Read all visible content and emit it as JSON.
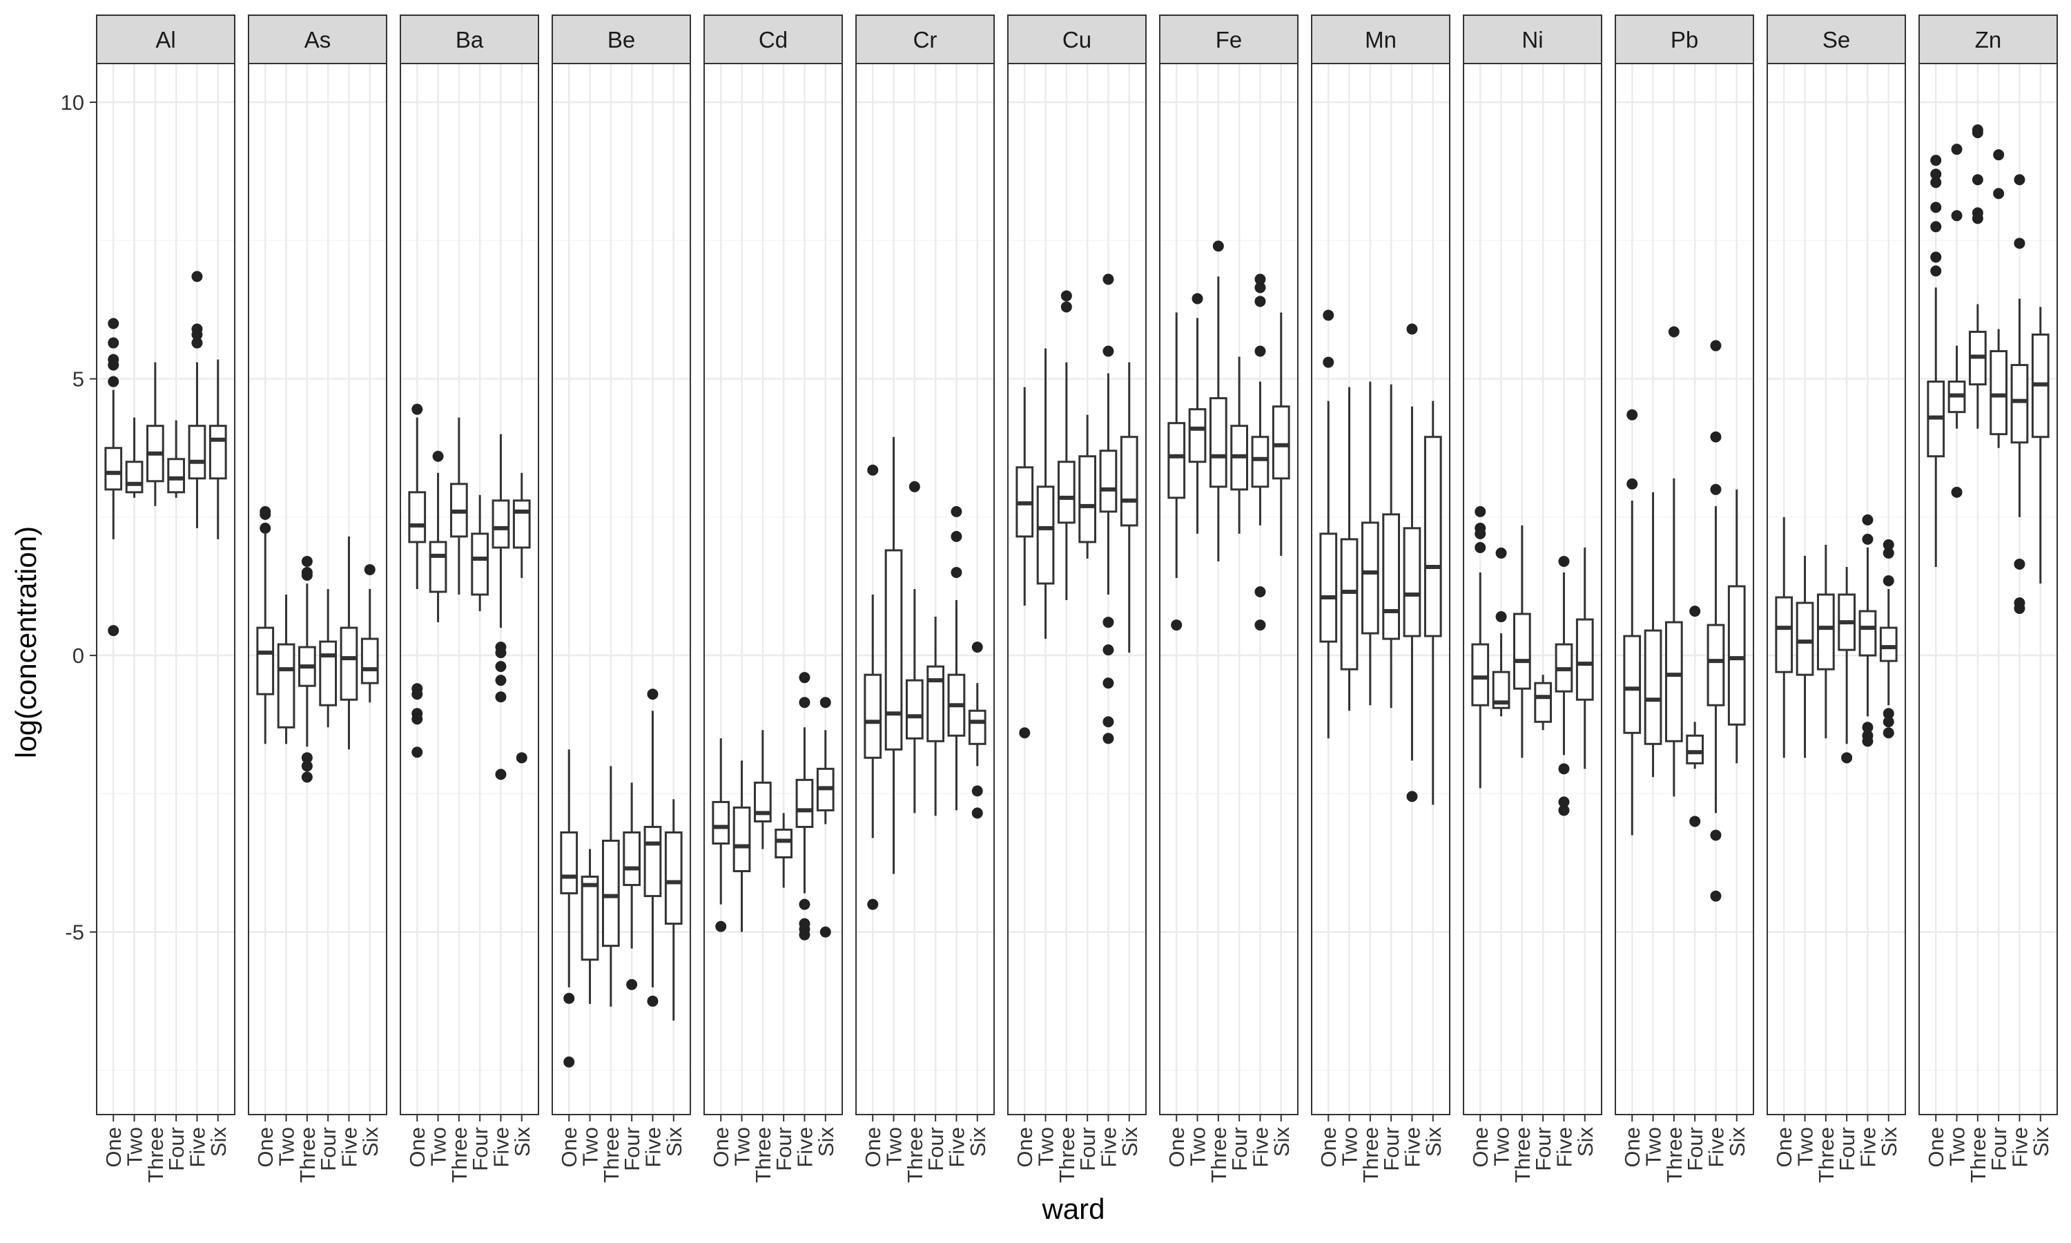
{
  "chart_data": {
    "type": "boxplot",
    "title": "",
    "xlabel": "ward",
    "ylabel": "log(concentration)",
    "ylim": [
      -8.3,
      10.7
    ],
    "yticks": [
      -5,
      0,
      5,
      10
    ],
    "ytick_labels": [
      "-5",
      "0",
      "5",
      "10"
    ],
    "grid": true,
    "facet_by": "element",
    "categories": [
      "One",
      "Two",
      "Three",
      "Four",
      "Five",
      "Six"
    ],
    "colors": {
      "panel_border": "#333333",
      "strip_fill": "#d9d9d9",
      "grid_major": "#ebebeb",
      "grid_minor": "#f5f5f5",
      "box": "#333333",
      "outlier": "#222222"
    },
    "panels": [
      {
        "label": "Al",
        "boxes": [
          {
            "q1": 3.0,
            "median": 3.3,
            "q3": 3.75,
            "lo": 2.1,
            "hi": 4.8,
            "outliers": [
              0.45,
              4.95,
              5.25,
              5.35,
              5.65,
              6.0
            ]
          },
          {
            "q1": 2.95,
            "median": 3.1,
            "q3": 3.5,
            "lo": 2.85,
            "hi": 4.3,
            "outliers": []
          },
          {
            "q1": 3.15,
            "median": 3.65,
            "q3": 4.15,
            "lo": 2.7,
            "hi": 5.3,
            "outliers": []
          },
          {
            "q1": 2.95,
            "median": 3.2,
            "q3": 3.55,
            "lo": 2.85,
            "hi": 4.25,
            "outliers": []
          },
          {
            "q1": 3.2,
            "median": 3.5,
            "q3": 4.15,
            "lo": 2.3,
            "hi": 5.3,
            "outliers": [
              5.65,
              5.8,
              5.9,
              6.85
            ]
          },
          {
            "q1": 3.2,
            "median": 3.9,
            "q3": 4.15,
            "lo": 2.1,
            "hi": 5.35,
            "outliers": []
          }
        ]
      },
      {
        "label": "As",
        "boxes": [
          {
            "q1": -0.7,
            "median": 0.05,
            "q3": 0.5,
            "lo": -1.6,
            "hi": 2.2,
            "outliers": [
              2.3,
              2.55,
              2.6
            ]
          },
          {
            "q1": -1.3,
            "median": -0.25,
            "q3": 0.2,
            "lo": -1.6,
            "hi": 1.1,
            "outliers": []
          },
          {
            "q1": -0.55,
            "median": -0.2,
            "q3": 0.15,
            "lo": -1.65,
            "hi": 1.3,
            "outliers": [
              -2.2,
              -2.0,
              -1.85,
              1.45,
              1.5,
              1.7
            ]
          },
          {
            "q1": -0.9,
            "median": 0.0,
            "q3": 0.25,
            "lo": -1.3,
            "hi": 1.2,
            "outliers": []
          },
          {
            "q1": -0.8,
            "median": -0.05,
            "q3": 0.5,
            "lo": -1.7,
            "hi": 2.15,
            "outliers": []
          },
          {
            "q1": -0.5,
            "median": -0.25,
            "q3": 0.3,
            "lo": -0.85,
            "hi": 1.2,
            "outliers": [
              1.55
            ]
          }
        ]
      },
      {
        "label": "Ba",
        "boxes": [
          {
            "q1": 2.05,
            "median": 2.35,
            "q3": 2.95,
            "lo": 1.2,
            "hi": 4.3,
            "outliers": [
              -1.75,
              -1.15,
              -1.05,
              -0.7,
              -0.6,
              4.45
            ]
          },
          {
            "q1": 1.15,
            "median": 1.8,
            "q3": 2.05,
            "lo": 0.6,
            "hi": 3.3,
            "outliers": [
              3.6
            ]
          },
          {
            "q1": 2.15,
            "median": 2.6,
            "q3": 3.1,
            "lo": 1.1,
            "hi": 4.3,
            "outliers": []
          },
          {
            "q1": 1.1,
            "median": 1.75,
            "q3": 2.2,
            "lo": 0.8,
            "hi": 2.9,
            "outliers": []
          },
          {
            "q1": 1.95,
            "median": 2.3,
            "q3": 2.8,
            "lo": 0.5,
            "hi": 4.0,
            "outliers": [
              -2.15,
              -0.75,
              -0.45,
              -0.2,
              0.05,
              0.15
            ]
          },
          {
            "q1": 1.95,
            "median": 2.6,
            "q3": 2.8,
            "lo": 1.4,
            "hi": 3.3,
            "outliers": [
              -1.85
            ]
          }
        ]
      },
      {
        "label": "Be",
        "boxes": [
          {
            "q1": -4.3,
            "median": -4.0,
            "q3": -3.2,
            "lo": -6.0,
            "hi": -1.7,
            "outliers": [
              -7.35,
              -6.2
            ]
          },
          {
            "q1": -5.5,
            "median": -4.15,
            "q3": -4.0,
            "lo": -6.3,
            "hi": -3.5,
            "outliers": []
          },
          {
            "q1": -5.25,
            "median": -4.35,
            "q3": -3.35,
            "lo": -6.35,
            "hi": -2.0,
            "outliers": []
          },
          {
            "q1": -4.15,
            "median": -3.85,
            "q3": -3.2,
            "lo": -5.3,
            "hi": -2.3,
            "outliers": [
              -5.95
            ]
          },
          {
            "q1": -4.35,
            "median": -3.4,
            "q3": -3.1,
            "lo": -6.0,
            "hi": -1.0,
            "outliers": [
              -6.25,
              -0.7
            ]
          },
          {
            "q1": -4.85,
            "median": -4.1,
            "q3": -3.2,
            "lo": -6.6,
            "hi": -2.6,
            "outliers": []
          }
        ]
      },
      {
        "label": "Cd",
        "boxes": [
          {
            "q1": -3.4,
            "median": -3.1,
            "q3": -2.65,
            "lo": -4.5,
            "hi": -1.5,
            "outliers": [
              -4.9
            ]
          },
          {
            "q1": -3.9,
            "median": -3.45,
            "q3": -2.75,
            "lo": -5.0,
            "hi": -1.9,
            "outliers": []
          },
          {
            "q1": -3.0,
            "median": -2.85,
            "q3": -2.3,
            "lo": -3.5,
            "hi": -1.35,
            "outliers": []
          },
          {
            "q1": -3.65,
            "median": -3.35,
            "q3": -3.15,
            "lo": -4.2,
            "hi": -2.85,
            "outliers": []
          },
          {
            "q1": -3.1,
            "median": -2.8,
            "q3": -2.25,
            "lo": -4.3,
            "hi": -1.3,
            "outliers": [
              -5.05,
              -4.95,
              -4.85,
              -4.5,
              -0.85,
              -0.4
            ]
          },
          {
            "q1": -2.8,
            "median": -2.4,
            "q3": -2.05,
            "lo": -3.05,
            "hi": -1.35,
            "outliers": [
              -5.0,
              -0.85
            ]
          }
        ]
      },
      {
        "label": "Cr",
        "boxes": [
          {
            "q1": -1.85,
            "median": -1.2,
            "q3": -0.35,
            "lo": -3.3,
            "hi": 1.1,
            "outliers": [
              -4.5,
              3.35
            ]
          },
          {
            "q1": -1.7,
            "median": -1.05,
            "q3": 1.9,
            "lo": -3.95,
            "hi": 3.95,
            "outliers": []
          },
          {
            "q1": -1.5,
            "median": -1.1,
            "q3": -0.45,
            "lo": -2.85,
            "hi": 1.2,
            "outliers": [
              3.05
            ]
          },
          {
            "q1": -1.55,
            "median": -0.45,
            "q3": -0.2,
            "lo": -2.9,
            "hi": 0.7,
            "outliers": []
          },
          {
            "q1": -1.45,
            "median": -0.9,
            "q3": -0.35,
            "lo": -2.8,
            "hi": 1.0,
            "outliers": [
              1.5,
              2.15,
              2.6
            ]
          },
          {
            "q1": -1.6,
            "median": -1.2,
            "q3": -1.0,
            "lo": -2.0,
            "hi": -0.5,
            "outliers": [
              -2.85,
              -2.45,
              0.15
            ]
          }
        ]
      },
      {
        "label": "Cu",
        "boxes": [
          {
            "q1": 2.15,
            "median": 2.75,
            "q3": 3.4,
            "lo": 0.9,
            "hi": 4.85,
            "outliers": [
              -1.4
            ]
          },
          {
            "q1": 1.3,
            "median": 2.3,
            "q3": 3.05,
            "lo": 0.3,
            "hi": 5.55,
            "outliers": []
          },
          {
            "q1": 2.4,
            "median": 2.85,
            "q3": 3.5,
            "lo": 1.0,
            "hi": 5.3,
            "outliers": [
              6.3,
              6.5
            ]
          },
          {
            "q1": 2.05,
            "median": 2.7,
            "q3": 3.6,
            "lo": 1.75,
            "hi": 4.35,
            "outliers": []
          },
          {
            "q1": 2.6,
            "median": 3.0,
            "q3": 3.7,
            "lo": 1.1,
            "hi": 5.1,
            "outliers": [
              -1.5,
              -1.2,
              -0.5,
              0.1,
              0.6,
              5.5,
              6.8
            ]
          },
          {
            "q1": 2.35,
            "median": 2.8,
            "q3": 3.95,
            "lo": 0.05,
            "hi": 5.3,
            "outliers": []
          }
        ]
      },
      {
        "label": "Fe",
        "boxes": [
          {
            "q1": 2.85,
            "median": 3.6,
            "q3": 4.2,
            "lo": 1.4,
            "hi": 6.2,
            "outliers": [
              0.55
            ]
          },
          {
            "q1": 3.5,
            "median": 4.1,
            "q3": 4.45,
            "lo": 2.2,
            "hi": 6.1,
            "outliers": [
              6.45
            ]
          },
          {
            "q1": 3.05,
            "median": 3.6,
            "q3": 4.65,
            "lo": 1.7,
            "hi": 6.85,
            "outliers": [
              7.4
            ]
          },
          {
            "q1": 3.0,
            "median": 3.6,
            "q3": 4.15,
            "lo": 2.2,
            "hi": 5.4,
            "outliers": []
          },
          {
            "q1": 3.05,
            "median": 3.55,
            "q3": 3.95,
            "lo": 2.35,
            "hi": 4.95,
            "outliers": [
              0.55,
              1.15,
              5.5,
              6.4,
              6.65,
              6.8
            ]
          },
          {
            "q1": 3.2,
            "median": 3.8,
            "q3": 4.5,
            "lo": 1.8,
            "hi": 6.2,
            "outliers": []
          }
        ]
      },
      {
        "label": "Mn",
        "boxes": [
          {
            "q1": 0.25,
            "median": 1.05,
            "q3": 2.2,
            "lo": -1.5,
            "hi": 4.6,
            "outliers": [
              5.3,
              6.15
            ]
          },
          {
            "q1": -0.25,
            "median": 1.15,
            "q3": 2.1,
            "lo": -1.0,
            "hi": 4.85,
            "outliers": []
          },
          {
            "q1": 0.4,
            "median": 1.5,
            "q3": 2.4,
            "lo": -0.9,
            "hi": 4.95,
            "outliers": []
          },
          {
            "q1": 0.3,
            "median": 0.8,
            "q3": 2.55,
            "lo": -0.95,
            "hi": 4.9,
            "outliers": []
          },
          {
            "q1": 0.35,
            "median": 1.1,
            "q3": 2.3,
            "lo": -1.9,
            "hi": 4.5,
            "outliers": [
              -2.55,
              5.9
            ]
          },
          {
            "q1": 0.35,
            "median": 1.6,
            "q3": 3.95,
            "lo": -2.7,
            "hi": 4.6,
            "outliers": []
          }
        ]
      },
      {
        "label": "Ni",
        "boxes": [
          {
            "q1": -0.9,
            "median": -0.4,
            "q3": 0.2,
            "lo": -2.4,
            "hi": 1.5,
            "outliers": [
              1.95,
              2.2,
              2.3,
              2.6
            ]
          },
          {
            "q1": -0.95,
            "median": -0.85,
            "q3": -0.3,
            "lo": -1.1,
            "hi": 0.4,
            "outliers": [
              0.7,
              1.85
            ]
          },
          {
            "q1": -0.6,
            "median": -0.1,
            "q3": 0.75,
            "lo": -1.85,
            "hi": 2.35,
            "outliers": []
          },
          {
            "q1": -1.2,
            "median": -0.75,
            "q3": -0.5,
            "lo": -1.35,
            "hi": -0.35,
            "outliers": []
          },
          {
            "q1": -0.65,
            "median": -0.25,
            "q3": 0.2,
            "lo": -1.8,
            "hi": 1.5,
            "outliers": [
              -2.8,
              -2.65,
              -2.05,
              1.7
            ]
          },
          {
            "q1": -0.8,
            "median": -0.15,
            "q3": 0.65,
            "lo": -2.05,
            "hi": 1.95,
            "outliers": []
          }
        ]
      },
      {
        "label": "Pb",
        "boxes": [
          {
            "q1": -1.4,
            "median": -0.6,
            "q3": 0.35,
            "lo": -3.25,
            "hi": 2.8,
            "outliers": [
              3.1,
              4.35
            ]
          },
          {
            "q1": -1.6,
            "median": -0.8,
            "q3": 0.45,
            "lo": -2.2,
            "hi": 2.95,
            "outliers": []
          },
          {
            "q1": -1.55,
            "median": -0.35,
            "q3": 0.6,
            "lo": -2.55,
            "hi": 3.2,
            "outliers": [
              5.85
            ]
          },
          {
            "q1": -1.95,
            "median": -1.75,
            "q3": -1.45,
            "lo": -2.05,
            "hi": -1.2,
            "outliers": [
              -3.0,
              0.8
            ]
          },
          {
            "q1": -0.9,
            "median": -0.1,
            "q3": 0.55,
            "lo": -2.85,
            "hi": 2.7,
            "outliers": [
              -4.35,
              -3.25,
              3.0,
              3.95,
              5.6
            ]
          },
          {
            "q1": -1.25,
            "median": -0.05,
            "q3": 1.25,
            "lo": -1.95,
            "hi": 3.0,
            "outliers": []
          }
        ]
      },
      {
        "label": "Se",
        "boxes": [
          {
            "q1": -0.3,
            "median": 0.5,
            "q3": 1.05,
            "lo": -1.85,
            "hi": 2.5,
            "outliers": []
          },
          {
            "q1": -0.35,
            "median": 0.25,
            "q3": 0.95,
            "lo": -1.85,
            "hi": 1.8,
            "outliers": []
          },
          {
            "q1": -0.25,
            "median": 0.5,
            "q3": 1.1,
            "lo": -1.5,
            "hi": 2.0,
            "outliers": []
          },
          {
            "q1": 0.1,
            "median": 0.6,
            "q3": 1.1,
            "lo": -1.6,
            "hi": 1.6,
            "outliers": [
              -1.85
            ]
          },
          {
            "q1": 0.0,
            "median": 0.5,
            "q3": 0.8,
            "lo": -1.1,
            "hi": 1.95,
            "outliers": [
              -1.55,
              -1.45,
              -1.3,
              2.1,
              2.45
            ]
          },
          {
            "q1": -0.1,
            "median": 0.15,
            "q3": 0.5,
            "lo": -0.9,
            "hi": 1.2,
            "outliers": [
              -1.4,
              -1.2,
              -1.05,
              1.35,
              1.85,
              2.0
            ]
          }
        ]
      },
      {
        "label": "Zn",
        "boxes": [
          {
            "q1": 3.6,
            "median": 4.3,
            "q3": 4.95,
            "lo": 1.6,
            "hi": 6.65,
            "outliers": [
              6.95,
              7.2,
              7.75,
              8.1,
              8.55,
              8.7,
              8.95
            ]
          },
          {
            "q1": 4.4,
            "median": 4.7,
            "q3": 4.95,
            "lo": 4.1,
            "hi": 5.6,
            "outliers": [
              2.95,
              7.95,
              9.15
            ]
          },
          {
            "q1": 4.9,
            "median": 5.4,
            "q3": 5.85,
            "lo": 4.1,
            "hi": 6.35,
            "outliers": [
              7.9,
              8.0,
              8.6,
              9.45,
              9.5
            ]
          },
          {
            "q1": 4.0,
            "median": 4.7,
            "q3": 5.5,
            "lo": 3.75,
            "hi": 5.9,
            "outliers": [
              8.35,
              9.05
            ]
          },
          {
            "q1": 3.85,
            "median": 4.6,
            "q3": 5.25,
            "lo": 2.5,
            "hi": 6.45,
            "outliers": [
              0.85,
              0.95,
              1.65,
              7.45,
              8.6
            ]
          },
          {
            "q1": 3.95,
            "median": 4.9,
            "q3": 5.8,
            "lo": 1.3,
            "hi": 6.3,
            "outliers": []
          }
        ]
      }
    ]
  }
}
